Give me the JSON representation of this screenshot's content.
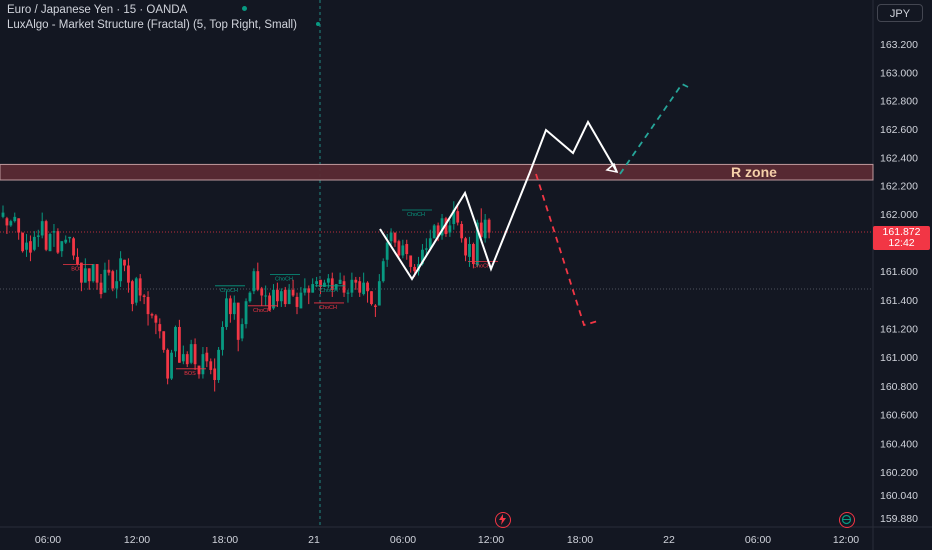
{
  "header": {
    "title": "Euro / Japanese Yen · 15 · OANDA",
    "indicator": "LuxAlgo - Market Structure (Fractal) (5, Top Right, Small)"
  },
  "currency_label": "JPY",
  "last_price": {
    "value": "161.872",
    "countdown": "12:42"
  },
  "colors": {
    "background": "#131722",
    "up": "#089981",
    "down": "#f23645",
    "zone_fill": "#5a2a33",
    "zone_label": "#f5d0a9",
    "text": "#d1d4dc",
    "grid": "#1e222d"
  },
  "icons": [
    "flash-icon",
    "globe-icon"
  ],
  "chart_data": {
    "type": "candlestick",
    "y_axis": {
      "ticks": [
        "163.200",
        "163.000",
        "162.800",
        "162.600",
        "162.400",
        "162.200",
        "162.000",
        "161.800",
        "161.600",
        "161.400",
        "161.200",
        "161.000",
        "160.800",
        "160.600",
        "160.400",
        "160.200",
        "160.040",
        "159.880"
      ],
      "range": [
        159.85,
        163.4
      ]
    },
    "x_axis": {
      "ticks": [
        "06:00",
        "12:00",
        "18:00",
        "21",
        "06:00",
        "12:00",
        "18:00",
        "22",
        "06:00",
        "12:00"
      ]
    },
    "zone": {
      "label": "R zone",
      "low": 162.24,
      "high": 162.35
    },
    "structure_labels": [
      {
        "text": "BOS",
        "x": "~03:00",
        "y": 161.62,
        "color": "down"
      },
      {
        "text": "BOS",
        "x": "~15:30",
        "y": 160.89,
        "color": "down"
      },
      {
        "text": "ChoCH",
        "x": "~17:00",
        "y": 161.47,
        "color": "up"
      },
      {
        "text": "ChoCH",
        "x": "~20:00",
        "y": 161.33,
        "color": "down"
      },
      {
        "text": "ChoCH",
        "x": "~20:30",
        "y": 161.55,
        "color": "up"
      },
      {
        "text": "ChoCH",
        "x": "~21:00",
        "y": 161.35,
        "color": "down"
      },
      {
        "text": "ChoCH",
        "x": "~21:30",
        "y": 161.47,
        "color": "up"
      },
      {
        "text": "ChoCH",
        "x": "~21 07:00",
        "y": 162.0,
        "color": "up"
      },
      {
        "text": "ChoCH",
        "x": "~21 10:00",
        "y": 161.64,
        "color": "down"
      }
    ],
    "projection_white": [
      [
        380,
        229
      ],
      [
        412,
        279
      ],
      [
        465,
        193
      ],
      [
        491,
        269
      ],
      [
        530,
        172
      ],
      [
        546,
        130
      ],
      [
        573,
        153
      ],
      [
        588,
        122
      ],
      [
        617,
        172
      ]
    ],
    "projection_red": [
      [
        536,
        174
      ],
      [
        584,
        325
      ],
      [
        598,
        321
      ]
    ],
    "projection_green": [
      [
        620,
        174
      ],
      [
        682,
        84
      ],
      [
        692,
        89
      ]
    ],
    "candles": [
      [
        161.98,
        162.01,
        161.97,
        162.06
      ],
      [
        161.97,
        161.92,
        161.86,
        161.98
      ],
      [
        161.92,
        161.95,
        161.91,
        161.96
      ],
      [
        161.95,
        161.98,
        161.94,
        162.01
      ],
      [
        161.97,
        161.87,
        161.82,
        161.97
      ],
      [
        161.87,
        161.74,
        161.73,
        161.87
      ],
      [
        161.75,
        161.8,
        161.7,
        161.86
      ],
      [
        161.81,
        161.73,
        161.67,
        161.85
      ],
      [
        161.75,
        161.84,
        161.74,
        161.88
      ],
      [
        161.84,
        161.85,
        161.77,
        161.89
      ],
      [
        161.85,
        161.95,
        161.83,
        162.01
      ],
      [
        161.95,
        161.75,
        161.74,
        161.96
      ],
      [
        161.74,
        161.86,
        161.74,
        161.87
      ],
      [
        161.87,
        161.88,
        161.77,
        161.93
      ],
      [
        161.88,
        161.73,
        161.72,
        161.9
      ],
      [
        161.74,
        161.81,
        161.7,
        161.81
      ],
      [
        161.8,
        161.82,
        161.79,
        161.85
      ],
      [
        161.83,
        161.84,
        161.8,
        161.84
      ],
      [
        161.83,
        161.71,
        161.68,
        161.84
      ],
      [
        161.7,
        161.65,
        161.64,
        161.76
      ],
      [
        161.66,
        161.52,
        161.46,
        161.66
      ],
      [
        161.52,
        161.62,
        161.52,
        161.69
      ],
      [
        161.62,
        161.53,
        161.47,
        161.62
      ],
      [
        161.53,
        161.65,
        161.52,
        161.65
      ],
      [
        161.65,
        161.52,
        161.47,
        161.65
      ],
      [
        161.52,
        161.44,
        161.41,
        161.58
      ],
      [
        161.45,
        161.61,
        161.45,
        161.66
      ],
      [
        161.61,
        161.59,
        161.57,
        161.68
      ],
      [
        161.6,
        161.48,
        161.46,
        161.61
      ],
      [
        161.48,
        161.53,
        161.41,
        161.61
      ],
      [
        161.53,
        161.69,
        161.49,
        161.74
      ],
      [
        161.68,
        161.64,
        161.6,
        161.68
      ],
      [
        161.64,
        161.52,
        161.45,
        161.69
      ],
      [
        161.53,
        161.37,
        161.32,
        161.54
      ],
      [
        161.38,
        161.55,
        161.36,
        161.56
      ],
      [
        161.55,
        161.43,
        161.39,
        161.58
      ],
      [
        161.43,
        161.42,
        161.37,
        161.44
      ],
      [
        161.42,
        161.3,
        161.22,
        161.46
      ],
      [
        161.3,
        161.29,
        161.27,
        161.31
      ],
      [
        161.29,
        161.24,
        161.16,
        161.3
      ],
      [
        161.23,
        161.18,
        161.13,
        161.27
      ],
      [
        161.18,
        161.05,
        161.03,
        161.18
      ],
      [
        161.05,
        160.85,
        160.81,
        161.06
      ],
      [
        160.85,
        161.03,
        160.84,
        161.05
      ],
      [
        161.04,
        161.21,
        161.0,
        161.22
      ],
      [
        161.21,
        160.96,
        160.96,
        161.26
      ],
      [
        160.97,
        161.02,
        160.95,
        161.08
      ],
      [
        161.02,
        160.95,
        160.93,
        161.04
      ],
      [
        160.96,
        161.09,
        160.95,
        161.12
      ],
      [
        161.09,
        160.95,
        160.91,
        161.13
      ],
      [
        160.94,
        160.88,
        160.85,
        160.94
      ],
      [
        160.88,
        161.02,
        160.85,
        161.07
      ],
      [
        161.03,
        160.97,
        160.93,
        161.07
      ],
      [
        160.97,
        160.91,
        160.88,
        160.99
      ],
      [
        160.92,
        160.84,
        160.76,
        160.99
      ],
      [
        160.84,
        161.05,
        160.82,
        161.07
      ],
      [
        161.05,
        161.21,
        161.01,
        161.25
      ],
      [
        161.21,
        161.41,
        161.19,
        161.46
      ],
      [
        161.41,
        161.3,
        161.24,
        161.43
      ],
      [
        161.3,
        161.38,
        161.26,
        161.43
      ],
      [
        161.38,
        161.12,
        161.04,
        161.38
      ],
      [
        161.13,
        161.23,
        161.11,
        161.27
      ],
      [
        161.23,
        161.39,
        161.2,
        161.41
      ],
      [
        161.39,
        161.45,
        161.38,
        161.46
      ],
      [
        161.46,
        161.6,
        161.44,
        161.62
      ],
      [
        161.6,
        161.47,
        161.46,
        161.66
      ],
      [
        161.48,
        161.43,
        161.36,
        161.49
      ],
      [
        161.43,
        161.43,
        161.36,
        161.5
      ],
      [
        161.43,
        161.33,
        161.32,
        161.45
      ],
      [
        161.34,
        161.47,
        161.33,
        161.51
      ],
      [
        161.47,
        161.39,
        161.35,
        161.52
      ],
      [
        161.39,
        161.46,
        161.35,
        161.48
      ],
      [
        161.47,
        161.37,
        161.35,
        161.49
      ],
      [
        161.37,
        161.47,
        161.37,
        161.51
      ],
      [
        161.47,
        161.43,
        161.42,
        161.54
      ],
      [
        161.42,
        161.35,
        161.3,
        161.45
      ],
      [
        161.34,
        161.45,
        161.34,
        161.49
      ],
      [
        161.45,
        161.48,
        161.43,
        161.55
      ],
      [
        161.48,
        161.45,
        161.37,
        161.5
      ],
      [
        161.45,
        161.51,
        161.45,
        161.55
      ],
      [
        161.51,
        161.53,
        161.49,
        161.56
      ],
      [
        161.54,
        161.49,
        161.44,
        161.54
      ],
      [
        161.49,
        161.52,
        161.49,
        161.54
      ],
      [
        161.52,
        161.55,
        161.48,
        161.58
      ],
      [
        161.55,
        161.47,
        161.42,
        161.59
      ],
      [
        161.47,
        161.51,
        161.47,
        161.51
      ],
      [
        161.51,
        161.54,
        161.51,
        161.59
      ],
      [
        161.53,
        161.45,
        161.42,
        161.57
      ],
      [
        161.45,
        161.45,
        161.38,
        161.47
      ],
      [
        161.45,
        161.54,
        161.42,
        161.59
      ],
      [
        161.54,
        161.52,
        161.47,
        161.56
      ],
      [
        161.53,
        161.45,
        161.42,
        161.56
      ],
      [
        161.44,
        161.52,
        161.43,
        161.59
      ],
      [
        161.52,
        161.46,
        161.38,
        161.53
      ],
      [
        161.46,
        161.37,
        161.36,
        161.46
      ],
      [
        161.36,
        161.35,
        161.28,
        161.37
      ],
      [
        161.36,
        161.53,
        161.36,
        161.58
      ],
      [
        161.53,
        161.67,
        161.52,
        161.69
      ],
      [
        161.68,
        161.8,
        161.63,
        161.86
      ],
      [
        161.81,
        161.87,
        161.77,
        161.9
      ],
      [
        161.87,
        161.8,
        161.77,
        161.87
      ],
      [
        161.81,
        161.71,
        161.69,
        161.82
      ],
      [
        161.71,
        161.78,
        161.69,
        161.82
      ],
      [
        161.79,
        161.72,
        161.68,
        161.82
      ],
      [
        161.71,
        161.63,
        161.59,
        161.71
      ],
      [
        161.63,
        161.6,
        161.56,
        161.65
      ],
      [
        161.6,
        161.65,
        161.57,
        161.7
      ],
      [
        161.65,
        161.75,
        161.64,
        161.79
      ],
      [
        161.75,
        161.76,
        161.7,
        161.83
      ],
      [
        161.76,
        161.83,
        161.76,
        161.89
      ],
      [
        161.83,
        161.92,
        161.83,
        161.93
      ],
      [
        161.92,
        161.84,
        161.81,
        161.94
      ],
      [
        161.85,
        161.97,
        161.82,
        162.0
      ],
      [
        161.97,
        161.86,
        161.84,
        161.98
      ],
      [
        161.87,
        161.92,
        161.84,
        161.96
      ],
      [
        161.93,
        162.03,
        161.89,
        162.09
      ],
      [
        162.02,
        161.94,
        161.92,
        162.06
      ],
      [
        161.93,
        161.83,
        161.8,
        161.95
      ],
      [
        161.83,
        161.71,
        161.67,
        161.84
      ],
      [
        161.7,
        161.79,
        161.63,
        161.84
      ],
      [
        161.79,
        161.65,
        161.62,
        161.8
      ],
      [
        161.64,
        161.94,
        161.63,
        161.96
      ],
      [
        161.94,
        161.84,
        161.8,
        162.04
      ],
      [
        161.83,
        161.96,
        161.8,
        162.0
      ],
      [
        161.96,
        161.87,
        161.83,
        161.97
      ]
    ]
  }
}
